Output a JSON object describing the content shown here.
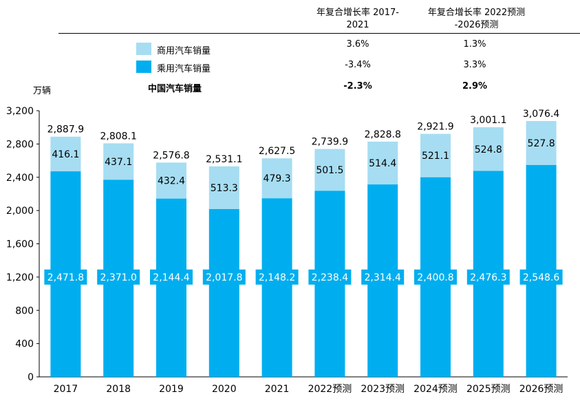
{
  "header": {
    "col1": [
      "年复合增长率 2017-",
      "2021"
    ],
    "col2": [
      "年复合增长率 2022预测",
      "-2026预测"
    ]
  },
  "legend": {
    "commercial": {
      "label": "商用汽车销量",
      "cagr_2017_2021": "3.6%",
      "cagr_2022_2026": "1.3%"
    },
    "passenger": {
      "label": "乘用汽车销量",
      "cagr_2017_2021": "-3.4%",
      "cagr_2022_2026": "3.3%"
    },
    "total": {
      "label": "中国汽车销量",
      "cagr_2017_2021": "-2.3%",
      "cagr_2022_2026": "2.9%"
    }
  },
  "colors": {
    "passenger": "#00AEEF",
    "commercial": "#A6DDF2",
    "axis": "#000000"
  },
  "chart_data": {
    "type": "bar",
    "stacked": true,
    "unit_label": "万辆",
    "categories": [
      "2017",
      "2018",
      "2019",
      "2020",
      "2021",
      "2022预测",
      "2023预测",
      "2024预测",
      "2025预测",
      "2026预测"
    ],
    "series": [
      {
        "name": "乘用汽车销量",
        "values": [
          2471.8,
          2371.0,
          2144.4,
          2017.8,
          2148.2,
          2238.4,
          2314.4,
          2400.8,
          2476.3,
          2548.6
        ],
        "labels": [
          "2,471.8",
          "2,371.0",
          "2,144.4",
          "2,017.8",
          "2,148.2",
          "2,238.4",
          "2,314.4",
          "2,400.8",
          "2,476.3",
          "2,548.6"
        ]
      },
      {
        "name": "商用汽车销量",
        "values": [
          416.1,
          437.1,
          432.4,
          513.3,
          479.3,
          501.5,
          514.4,
          521.1,
          524.8,
          527.8
        ],
        "labels": [
          "416.1",
          "437.1",
          "432.4",
          "513.3",
          "479.3",
          "501.5",
          "514.4",
          "521.1",
          "524.8",
          "527.8"
        ]
      }
    ],
    "totals": [
      2887.9,
      2808.1,
      2576.8,
      2531.1,
      2627.5,
      2739.9,
      2828.8,
      2921.9,
      3001.1,
      3076.4
    ],
    "total_labels": [
      "2,887.9",
      "2,808.1",
      "2,576.8",
      "2,531.1",
      "2,627.5",
      "2,739.9",
      "2,828.8",
      "2,921.9",
      "3,001.1",
      "3,076.4"
    ],
    "ylim": [
      0,
      3200
    ],
    "yticks": [
      0,
      400,
      800,
      1200,
      1600,
      2000,
      2400,
      2800,
      3200
    ],
    "ytick_labels": [
      "0",
      "400",
      "800",
      "1,200",
      "1,600",
      "2,000",
      "2,400",
      "2,800",
      "3,200"
    ],
    "grid": false,
    "legend_position": "top"
  }
}
